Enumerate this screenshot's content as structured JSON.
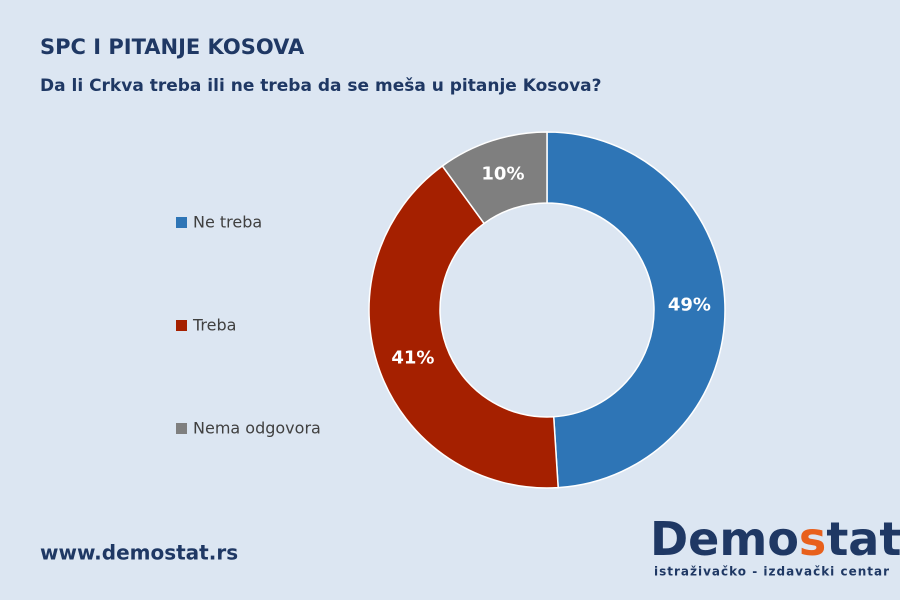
{
  "chart_data": {
    "type": "donut",
    "title": "SPC I PITANJE KOSOVA",
    "subtitle": "Da li Crkva treba ili ne treba da se meša u pitanje Kosova?",
    "categories": [
      "Ne treba",
      "Treba",
      "Nema odgovora"
    ],
    "values": [
      49,
      41,
      10
    ],
    "value_labels": [
      "49%",
      "41%",
      "10%"
    ],
    "colors": [
      "#2e75b6",
      "#a52000",
      "#7f7f7f"
    ],
    "legend": "left"
  },
  "footer": {
    "website": "www.demostat.rs",
    "logo": {
      "parts": [
        "Demo",
        "s",
        "tat"
      ],
      "tagline": "istraživačko - izdavački  centar"
    }
  }
}
